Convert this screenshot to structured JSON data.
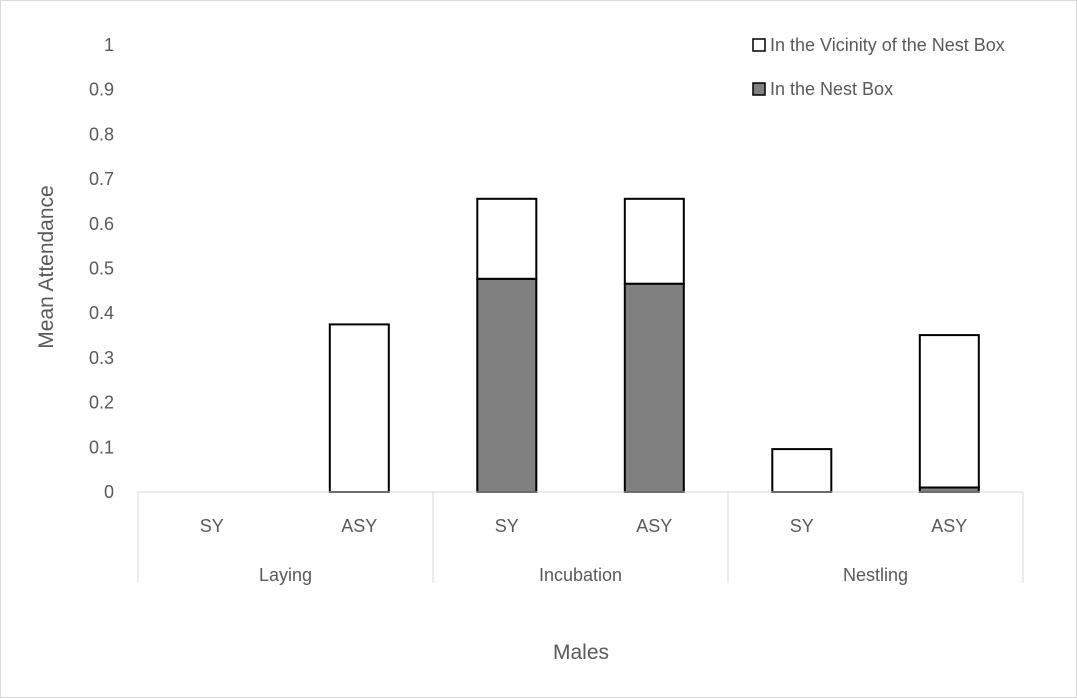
{
  "chart_data": {
    "type": "bar",
    "stacked": true,
    "title": "",
    "xlabel": "Males",
    "ylabel": "Mean Attendance",
    "ylim": [
      0,
      1
    ],
    "yticks": [
      "0",
      "0.1",
      "0.2",
      "0.3",
      "0.4",
      "0.5",
      "0.6",
      "0.7",
      "0.8",
      "0.9",
      "1"
    ],
    "groups": [
      {
        "label": "Laying",
        "categories": [
          "SY",
          "ASY"
        ]
      },
      {
        "label": "Incubation",
        "categories": [
          "SY",
          "ASY"
        ]
      },
      {
        "label": "Nestling",
        "categories": [
          "SY",
          "ASY"
        ]
      }
    ],
    "categories": [
      "SY",
      "ASY",
      "SY",
      "ASY",
      "SY",
      "ASY"
    ],
    "series": [
      {
        "name": "In the Nest Box",
        "color": "#808080",
        "values": [
          0,
          0,
          0.477,
          0.466,
          0,
          0.01
        ]
      },
      {
        "name": "In the Vicinity of the Nest Box",
        "color": "#ffffff",
        "values": [
          0,
          0.375,
          0.179,
          0.19,
          0.096,
          0.341
        ]
      }
    ],
    "legend": {
      "position": "top-right",
      "entries": [
        "In the Vicinity of the Nest Box",
        "In the Nest Box"
      ]
    },
    "grid": false
  }
}
